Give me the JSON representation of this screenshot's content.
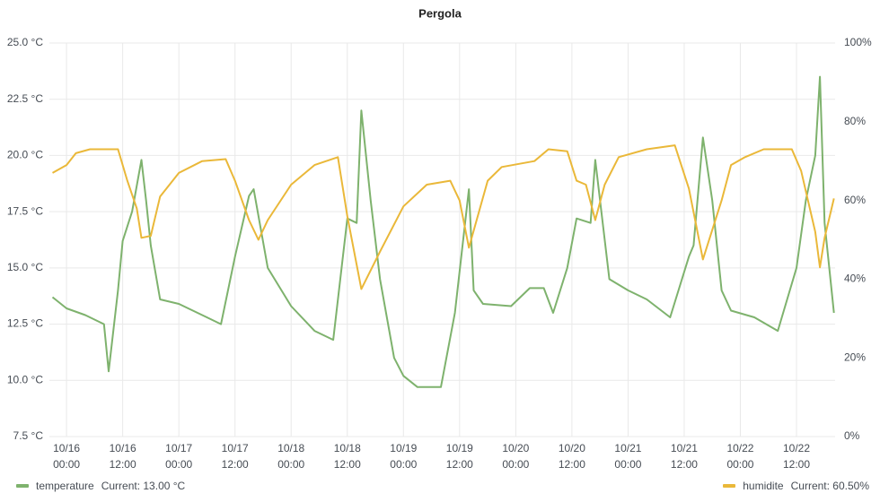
{
  "chart_data": {
    "type": "line",
    "title": "Pergola",
    "xlim": [
      "10/15 20:20",
      "10/22 20:15"
    ],
    "xticks": [
      "10/16 00:00",
      "10/16 12:00",
      "10/17 00:00",
      "10/17 12:00",
      "10/18 00:00",
      "10/18 12:00",
      "10/19 00:00",
      "10/19 12:00",
      "10/20 00:00",
      "10/20 12:00",
      "10/21 00:00",
      "10/21 12:00",
      "10/22 00:00",
      "10/22 12:00"
    ],
    "ylim": [
      7.5,
      25
    ],
    "yticks": [
      {
        "value": 7.5,
        "label": "7.5 °C"
      },
      {
        "value": 10,
        "label": "10.0 °C"
      },
      {
        "value": 12.5,
        "label": "12.5 °C"
      },
      {
        "value": 15,
        "label": "15.0 °C"
      },
      {
        "value": 17.5,
        "label": "17.5 °C"
      },
      {
        "value": 20,
        "label": "20.0 °C"
      },
      {
        "value": 22.5,
        "label": "22.5 °C"
      },
      {
        "value": 25,
        "label": "25.0 °C"
      }
    ],
    "y2lim": [
      0,
      100
    ],
    "y2ticks": [
      {
        "value": 0,
        "label": "0%"
      },
      {
        "value": 20,
        "label": "20%"
      },
      {
        "value": 40,
        "label": "40%"
      },
      {
        "value": 60,
        "label": "60%"
      },
      {
        "value": 80,
        "label": "80%"
      },
      {
        "value": 100,
        "label": "100%"
      }
    ],
    "grid": true,
    "series": [
      {
        "name": "temperature",
        "color": "#7eb26d",
        "axis": "y",
        "legend_value_label": "Current: 13.00 °C",
        "x": [
          "10/15 21:00",
          "10/16 00:00",
          "10/16 04:00",
          "10/16 08:00",
          "10/16 09:00",
          "10/16 11:00",
          "10/16 12:00",
          "10/16 14:00",
          "10/16 16:00",
          "10/16 17:00",
          "10/16 18:00",
          "10/16 20:00",
          "10/17 00:00",
          "10/17 06:00",
          "10/17 09:00",
          "10/17 12:00",
          "10/17 15:00",
          "10/17 16:00",
          "10/17 19:00",
          "10/18 00:00",
          "10/18 05:00",
          "10/18 09:00",
          "10/18 12:00",
          "10/18 14:00",
          "10/18 15:00",
          "10/18 17:00",
          "10/18 19:00",
          "10/18 22:00",
          "10/19 00:00",
          "10/19 03:00",
          "10/19 08:00",
          "10/19 11:00",
          "10/19 14:00",
          "10/19 15:00",
          "10/19 17:00",
          "10/19 23:00",
          "10/20 03:00",
          "10/20 06:00",
          "10/20 08:00",
          "10/20 11:00",
          "10/20 13:00",
          "10/20 16:00",
          "10/20 17:00",
          "10/20 20:00",
          "10/21 00:00",
          "10/21 04:00",
          "10/21 09:00",
          "10/21 13:00",
          "10/21 14:00",
          "10/21 16:00",
          "10/21 18:00",
          "10/21 20:00",
          "10/21 22:00",
          "10/22 03:00",
          "10/22 08:00",
          "10/22 12:00",
          "10/22 14:00",
          "10/22 16:00",
          "10/22 17:00",
          "10/22 18:00",
          "10/22 20:00"
        ],
        "values": [
          13.7,
          13.2,
          12.9,
          12.5,
          10.4,
          14,
          16.2,
          17.5,
          19.8,
          18,
          16,
          13.6,
          13.4,
          12.8,
          12.5,
          15.5,
          18.2,
          18.5,
          15,
          13.3,
          12.2,
          11.8,
          17.2,
          17,
          22,
          18,
          14.5,
          11,
          10.2,
          9.7,
          9.7,
          13,
          18.5,
          14,
          13.4,
          13.3,
          14.1,
          14.1,
          13,
          15,
          17.2,
          17,
          19.8,
          14.5,
          14,
          13.6,
          12.8,
          15.5,
          16,
          20.8,
          18,
          14,
          13.1,
          12.8,
          12.2,
          15,
          18,
          20,
          23.5,
          17,
          13
        ]
      },
      {
        "name": "humidite",
        "color": "#eab839",
        "axis": "y2",
        "legend_value_label": "Current: 60.50%",
        "x": [
          "10/15 21:00",
          "10/16 00:00",
          "10/16 02:00",
          "10/16 05:00",
          "10/16 11:00",
          "10/16 13:00",
          "10/16 15:00",
          "10/16 16:00",
          "10/16 18:00",
          "10/16 20:00",
          "10/17 00:00",
          "10/17 05:00",
          "10/17 10:00",
          "10/17 12:00",
          "10/17 15:00",
          "10/17 17:00",
          "10/17 19:00",
          "10/18 00:00",
          "10/18 05:00",
          "10/18 10:00",
          "10/18 12:00",
          "10/18 15:00",
          "10/18 19:00",
          "10/19 00:00",
          "10/19 05:00",
          "10/19 10:00",
          "10/19 12:00",
          "10/19 14:00",
          "10/19 18:00",
          "10/19 21:00",
          "10/20 04:00",
          "10/20 07:00",
          "10/20 11:00",
          "10/20 13:00",
          "10/20 15:00",
          "10/20 17:00",
          "10/20 19:00",
          "10/20 22:00",
          "10/21 04:00",
          "10/21 10:00",
          "10/21 13:00",
          "10/21 16:00",
          "10/21 20:00",
          "10/21 22:00",
          "10/22 01:00",
          "10/22 05:00",
          "10/22 11:00",
          "10/22 13:00",
          "10/22 16:00",
          "10/22 17:00",
          "10/22 18:00",
          "10/22 20:00"
        ],
        "values": [
          67,
          69,
          72,
          73,
          73,
          65,
          58,
          50.5,
          51,
          61,
          67,
          70,
          70.5,
          65,
          55,
          50,
          55,
          64,
          69,
          71,
          56,
          37.5,
          47,
          58.5,
          64,
          65,
          60,
          48,
          65,
          68.5,
          70,
          73,
          72.5,
          65,
          64,
          55,
          64,
          71,
          73,
          74,
          63,
          45,
          60,
          69,
          71,
          73,
          73,
          67.5,
          52,
          43,
          50.5,
          60.5
        ]
      }
    ]
  }
}
